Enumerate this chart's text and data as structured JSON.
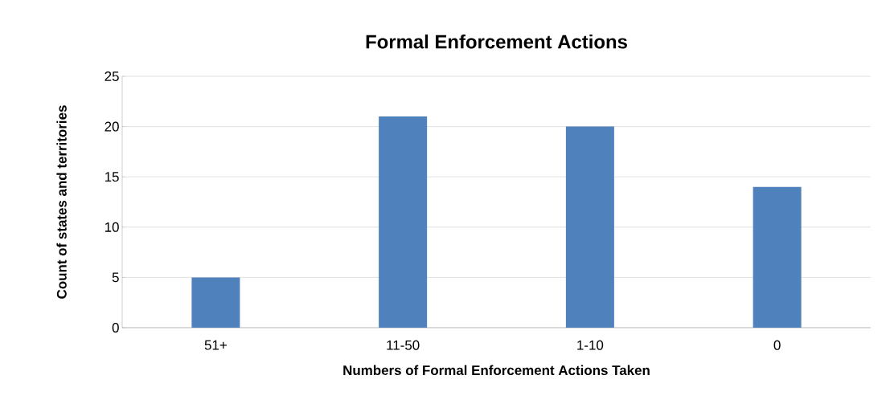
{
  "chart_data": {
    "type": "bar",
    "title": "Formal Enforcement Actions",
    "xlabel": "Numbers of Formal Enforcement Actions Taken",
    "ylabel": "Count of states and territories",
    "categories": [
      "51+",
      "11-50",
      "1-10",
      "0"
    ],
    "values": [
      5,
      21,
      20,
      14
    ],
    "color": "#4f81bd",
    "ylim": [
      0,
      25
    ],
    "yticks": [
      0,
      5,
      10,
      15,
      20,
      25
    ],
    "grid": "y"
  }
}
